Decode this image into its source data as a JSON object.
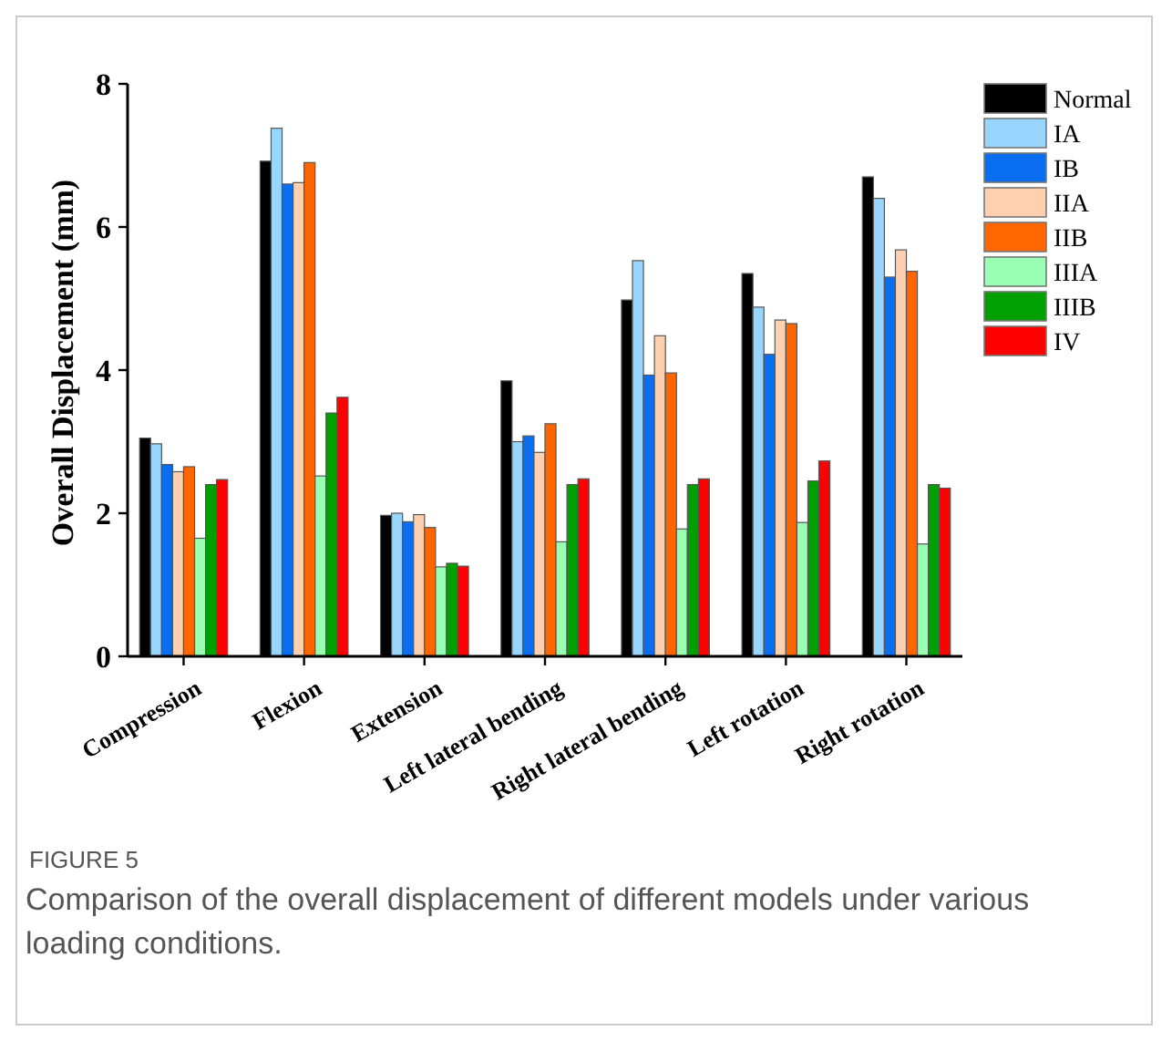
{
  "chart_data": {
    "type": "bar",
    "ylabel": "Overall Displacement (mm)",
    "categories": [
      "Compression",
      "Flexion",
      "Extension",
      "Left lateral bending",
      "Right lateral bending",
      "Left rotation",
      "Right rotation"
    ],
    "series": [
      {
        "name": "Normal",
        "color": "#000000",
        "values": [
          3.05,
          6.92,
          1.97,
          3.85,
          4.98,
          5.35,
          6.7
        ]
      },
      {
        "name": "IA",
        "color": "#99d6ff",
        "values": [
          2.97,
          7.38,
          2.0,
          3.0,
          5.53,
          4.88,
          6.4
        ]
      },
      {
        "name": "IB",
        "color": "#0a6ef0",
        "values": [
          2.68,
          6.6,
          1.88,
          3.08,
          3.93,
          4.22,
          5.3
        ]
      },
      {
        "name": "IIA",
        "color": "#ffd0b0",
        "values": [
          2.58,
          6.62,
          1.98,
          2.85,
          4.48,
          4.7,
          5.68
        ]
      },
      {
        "name": "IIB",
        "color": "#ff6600",
        "values": [
          2.65,
          6.9,
          1.8,
          3.25,
          3.96,
          4.65,
          5.38
        ]
      },
      {
        "name": "IIIA",
        "color": "#99ffb3",
        "values": [
          1.65,
          2.52,
          1.25,
          1.6,
          1.78,
          1.87,
          1.57
        ]
      },
      {
        "name": "IIIB",
        "color": "#00a000",
        "values": [
          2.4,
          3.4,
          1.3,
          2.4,
          2.4,
          2.45,
          2.4
        ]
      },
      {
        "name": "IV",
        "color": "#ff0000",
        "values": [
          2.47,
          3.62,
          1.26,
          2.48,
          2.48,
          2.73,
          2.35
        ]
      }
    ],
    "ylim": [
      0,
      8
    ],
    "yticks": [
      0,
      2,
      4,
      6,
      8
    ],
    "legend": "top right",
    "grid": false,
    "annotations": [
      "FIGURE 5",
      "Comparison of the overall displacement of different models under various loading conditions."
    ]
  }
}
